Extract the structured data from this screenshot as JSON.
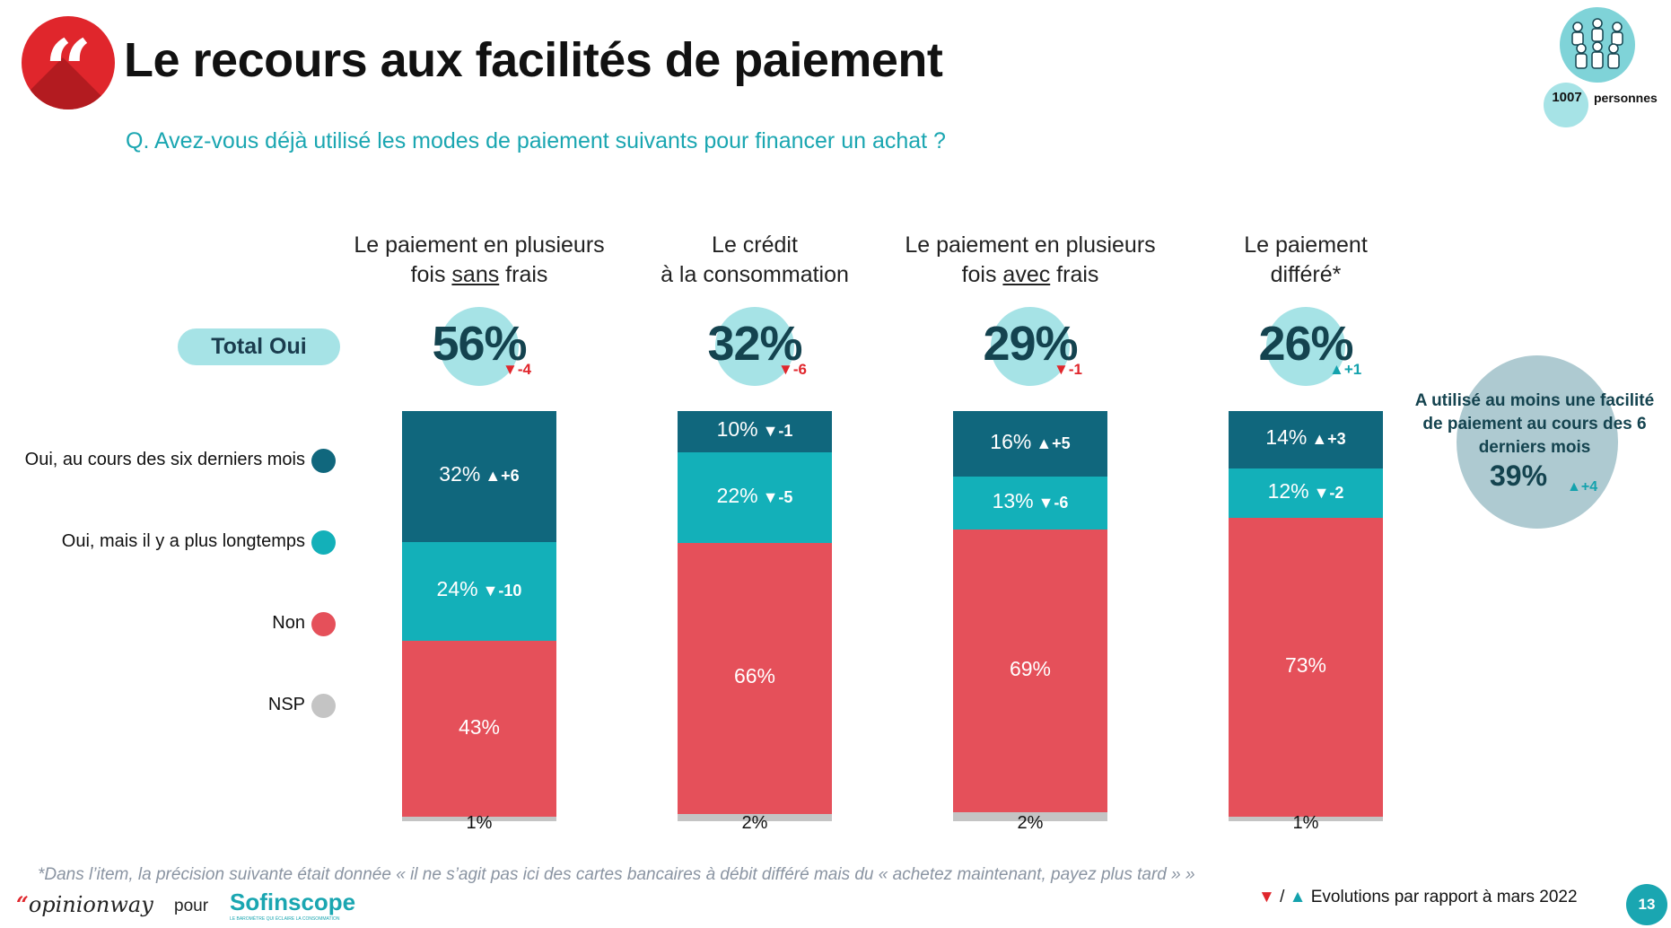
{
  "header": {
    "title": "Le recours aux facilités de paiement",
    "question": "Q. Avez-vous déjà utilisé les modes de paiement suivants pour financer un achat ?",
    "quote_glyph": "“",
    "sample": {
      "count": "1007",
      "label": "personnes"
    }
  },
  "total_label": "Total Oui",
  "legend": [
    {
      "label": "Oui, au cours des six derniers mois",
      "color": "#10677d"
    },
    {
      "label": "Oui, mais il y a plus longtemps",
      "color": "#13b0b9"
    },
    {
      "label": "Non",
      "color": "#e5505a"
    },
    {
      "label": "NSP",
      "color": "#c4c4c4"
    }
  ],
  "chart_data": {
    "type": "bar",
    "stacked": true,
    "orientation": "vertical",
    "categories": [
      {
        "line1": "Le paiement en plusieurs",
        "line2_pre": "fois ",
        "line2_u": "sans",
        "line2_post": " frais"
      },
      {
        "line1": "Le crédit",
        "line2_pre": "à la consommation",
        "line2_u": "",
        "line2_post": ""
      },
      {
        "line1": "Le paiement en plusieurs",
        "line2_pre": "fois ",
        "line2_u": "avec",
        "line2_post": " frais"
      },
      {
        "line1": "Le paiement",
        "line2_pre": "différé*",
        "line2_u": "",
        "line2_post": ""
      }
    ],
    "series": [
      {
        "name": "Oui, au cours des six derniers mois",
        "color": "#10677d",
        "values": [
          32,
          10,
          16,
          14
        ],
        "labels": [
          "32%",
          "10%",
          "16%",
          "14%"
        ],
        "evolutions": [
          {
            "dir": "up",
            "text": "+6"
          },
          {
            "dir": "down",
            "text": "-1"
          },
          {
            "dir": "up",
            "text": "+5"
          },
          {
            "dir": "up",
            "text": "+3"
          }
        ]
      },
      {
        "name": "Oui, mais il y a plus longtemps",
        "color": "#13b0b9",
        "values": [
          24,
          22,
          13,
          12
        ],
        "labels": [
          "24%",
          "22%",
          "13%",
          "12%"
        ],
        "evolutions": [
          {
            "dir": "down",
            "text": "-10"
          },
          {
            "dir": "down",
            "text": "-5"
          },
          {
            "dir": "down",
            "text": "-6"
          },
          {
            "dir": "down",
            "text": "-2"
          }
        ]
      },
      {
        "name": "Non",
        "color": "#e5505a",
        "values": [
          43,
          66,
          69,
          73
        ],
        "labels": [
          "43%",
          "66%",
          "69%",
          "73%"
        ]
      },
      {
        "name": "NSP",
        "color": "#c4c4c4",
        "values": [
          1,
          2,
          2,
          1
        ],
        "labels": [
          "1%",
          "2%",
          "2%",
          "1%"
        ]
      }
    ],
    "totals": [
      {
        "value": "56%",
        "dir": "down",
        "evo": "-4"
      },
      {
        "value": "32%",
        "dir": "down",
        "evo": "-6"
      },
      {
        "value": "29%",
        "dir": "down",
        "evo": "-1"
      },
      {
        "value": "26%",
        "dir": "up",
        "evo": "+1"
      }
    ],
    "ylim": [
      0,
      100
    ]
  },
  "side_note": {
    "text": "A utilisé au moins une facilité de paiement au cours des 6 derniers mois",
    "value": "39%",
    "dir": "up",
    "evo": "+4"
  },
  "footer": {
    "footnote": "*Dans l’item, la précision suivante était donnée « il ne s’agit pas ici des cartes bancaires à débit différé mais du « achetez maintenant, payez plus tard » »",
    "brand": "opinionway",
    "pour": "pour",
    "partner": "Sofinscope",
    "partner_tagline": "LE BAROMÈTRE QUI ÉCLAIRE LA CONSOMMATION",
    "evolution_legend": "Evolutions par rapport à mars 2022",
    "page_number": "13"
  }
}
